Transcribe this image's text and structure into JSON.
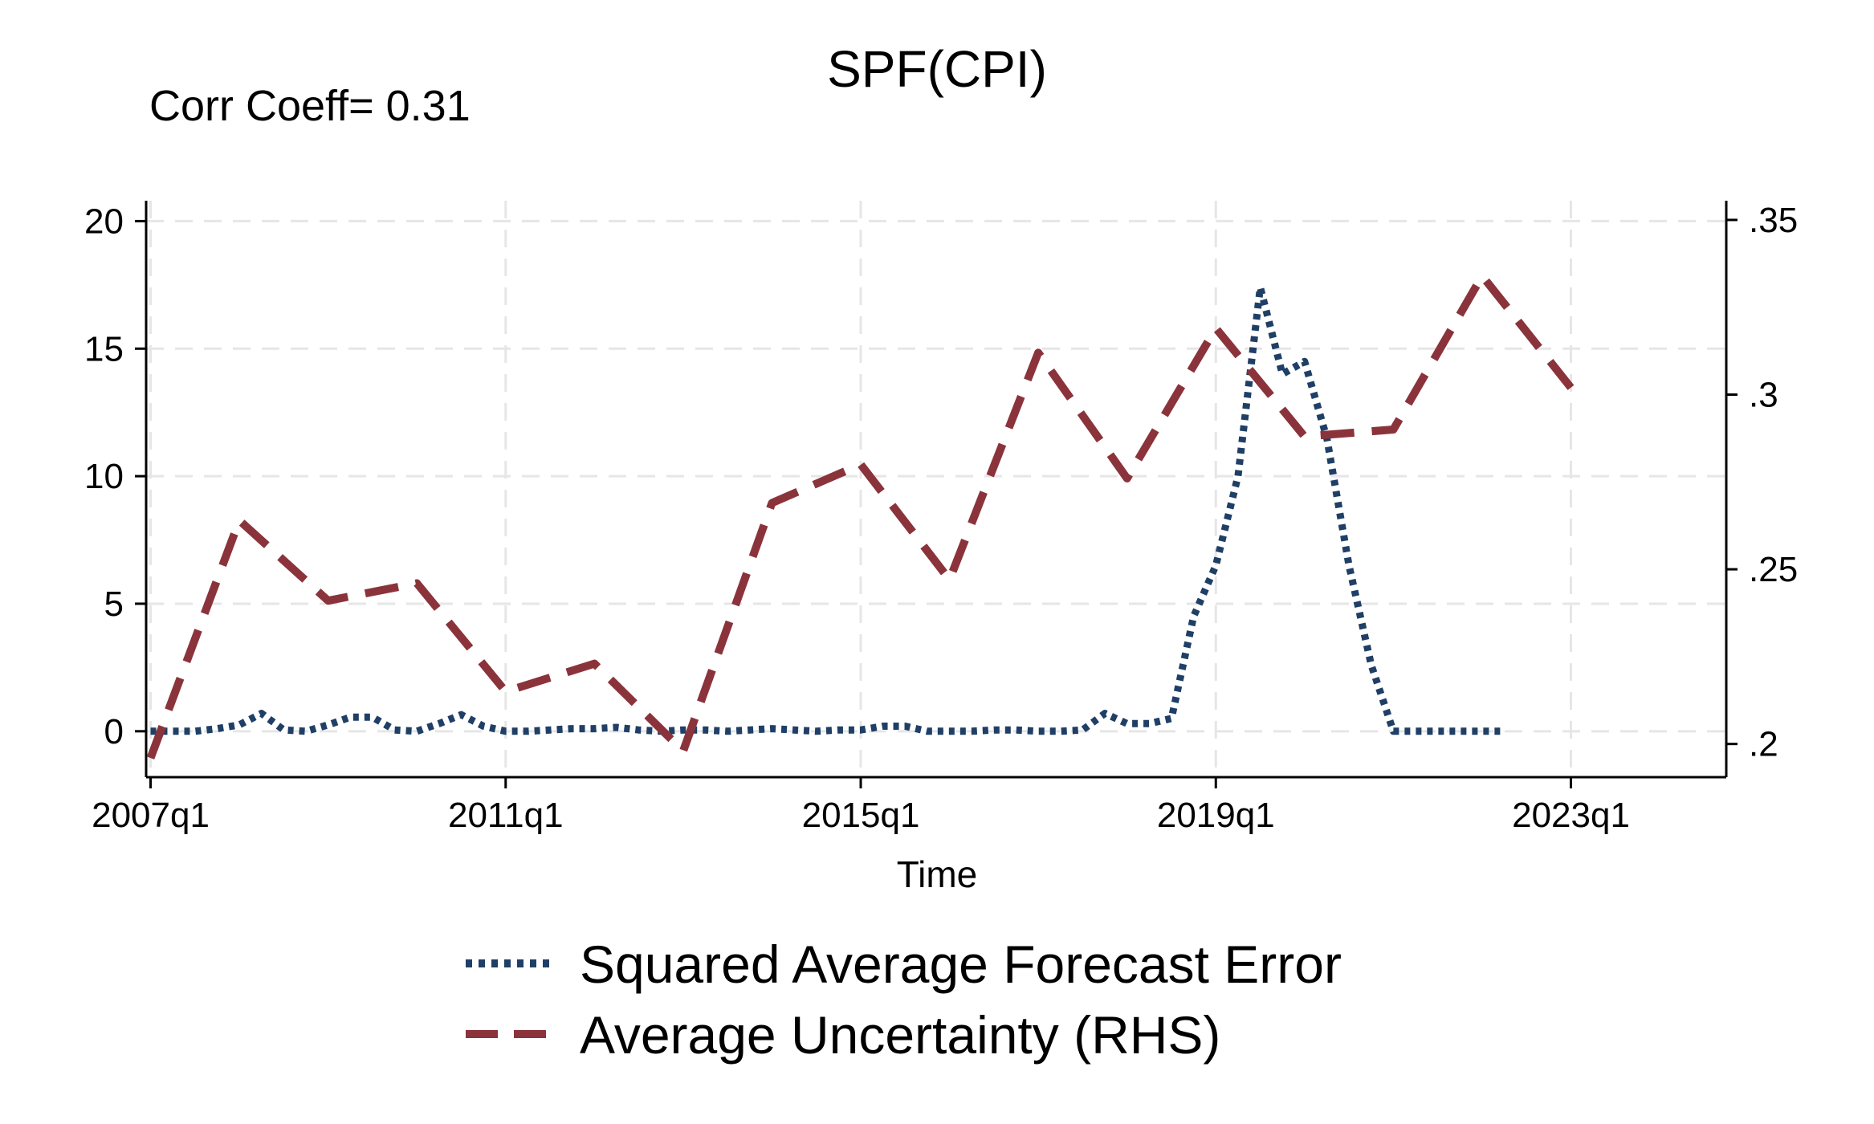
{
  "chart_data": {
    "type": "line",
    "title": "SPF(CPI)",
    "annotation": "Corr Coeff= 0.31",
    "xlabel": "Time",
    "ylabel": "",
    "ylabel_right": "",
    "x_tick_labels": [
      "2007q1",
      "2011q1",
      "2015q1",
      "2019q1",
      "2023q1"
    ],
    "x_tick_values": [
      2007.0,
      2011.0,
      2015.0,
      2019.0,
      2023.0
    ],
    "xlim": [
      2006.95,
      2024.75
    ],
    "ylim": [
      -1.8,
      20.8
    ],
    "ylim_right": [
      0.1905,
      0.3555
    ],
    "y_ticks": [
      0,
      5,
      10,
      15,
      20
    ],
    "y_tick_labels": [
      "0",
      "5",
      "10",
      "15",
      "20"
    ],
    "y_right_ticks": [
      0.2,
      0.25,
      0.3,
      0.35
    ],
    "y_right_tick_labels": [
      ".2",
      ".25",
      ".3",
      ".35"
    ],
    "grid": true,
    "legend_position": "bottom",
    "series": [
      {
        "name": "Squared Average Forecast Error",
        "axis": "left",
        "color": "#1f3f66",
        "style": "dotted",
        "x": [
          2007.0,
          2007.25,
          2007.5,
          2007.75,
          2008.0,
          2008.25,
          2008.5,
          2008.75,
          2009.0,
          2009.25,
          2009.5,
          2009.75,
          2010.0,
          2010.25,
          2010.5,
          2010.75,
          2011.0,
          2011.25,
          2011.5,
          2011.75,
          2012.0,
          2012.25,
          2012.5,
          2012.75,
          2013.0,
          2013.25,
          2013.5,
          2013.75,
          2014.0,
          2014.25,
          2014.5,
          2014.75,
          2015.0,
          2015.25,
          2015.5,
          2015.75,
          2016.0,
          2016.25,
          2016.5,
          2016.75,
          2017.0,
          2017.25,
          2017.5,
          2017.75,
          2018.0,
          2018.25,
          2018.5,
          2018.75,
          2019.0,
          2019.25,
          2019.5,
          2019.75,
          2020.0,
          2020.25,
          2020.5,
          2020.75,
          2021.0,
          2021.25,
          2021.5,
          2021.75,
          2022.0,
          2022.25
        ],
        "y": [
          0.0,
          0.0,
          0.0,
          0.1,
          0.25,
          0.7,
          0.05,
          0.0,
          0.25,
          0.55,
          0.55,
          0.05,
          0.0,
          0.3,
          0.65,
          0.2,
          0.0,
          0.0,
          0.05,
          0.1,
          0.1,
          0.15,
          0.05,
          0.0,
          0.05,
          0.05,
          0.0,
          0.05,
          0.1,
          0.05,
          0.0,
          0.05,
          0.05,
          0.2,
          0.2,
          0.0,
          0.0,
          0.0,
          0.05,
          0.05,
          0.0,
          0.0,
          0.05,
          0.7,
          0.3,
          0.3,
          0.5,
          4.5,
          6.5,
          10.0,
          17.4,
          14.0,
          14.5,
          11.5,
          6.5,
          2.6,
          0.0,
          0.0,
          0.0,
          0.0,
          0.0,
          0.0
        ]
      },
      {
        "name": "Average Uncertainty (RHS)",
        "axis": "right",
        "color": "#8b333b",
        "style": "dashed",
        "x": [
          2007.0,
          2008.0,
          2009.0,
          2010.0,
          2011.0,
          2012.0,
          2013.0,
          2014.0,
          2015.0,
          2016.0,
          2017.0,
          2018.0,
          2019.0,
          2020.0,
          2021.0,
          2022.0,
          2023.0
        ],
        "y": [
          0.196,
          0.264,
          0.241,
          0.246,
          0.215,
          0.223,
          0.198,
          0.269,
          0.28,
          0.247,
          0.312,
          0.276,
          0.319,
          0.288,
          0.29,
          0.334,
          0.302
        ]
      }
    ]
  }
}
